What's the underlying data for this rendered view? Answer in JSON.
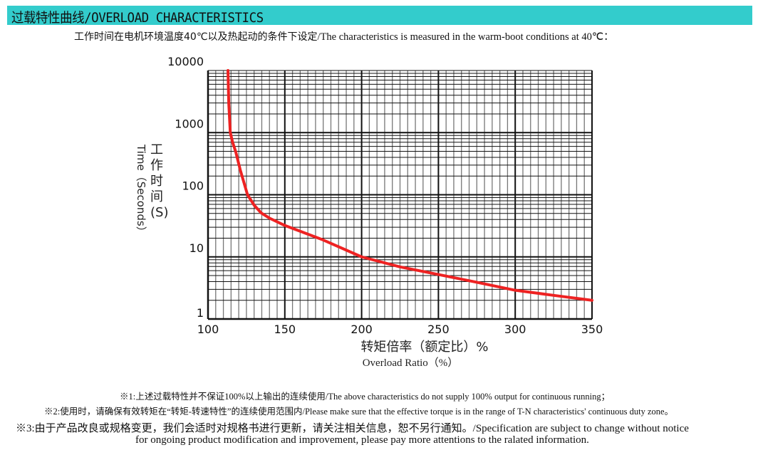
{
  "header": {
    "title": "过载特性曲线/OVERLOAD CHARACTERISTICS",
    "bg_color": "#33CCCC"
  },
  "subtitle": {
    "cn": "工作时间在电机环境温度40℃以及热起动的条件下设定",
    "en": "/The characteristics is measured in the warm-boot conditions at 40℃："
  },
  "chart_data": {
    "type": "line",
    "xlabel_cn": "转矩倍率（额定比）%",
    "xlabel_en": "Overload Ratio（%）",
    "ylabel_cn": "工作时间(S)",
    "ylabel_en": "Time（Seconds）",
    "xlim": [
      100,
      350
    ],
    "ylim": [
      1,
      10000
    ],
    "yscale": "log",
    "grid": true,
    "x_ticks": [
      "100",
      "150",
      "200",
      "250",
      "300",
      "350"
    ],
    "y_ticks": [
      "1",
      "10",
      "100",
      "1000",
      "10000"
    ],
    "series": [
      {
        "color": "#EE2222",
        "x": [
          113,
          113.5,
          114.5,
          116,
          118,
          121,
          125.7,
          130,
          134.6,
          140,
          150,
          175,
          200,
          225,
          250,
          275,
          300,
          325,
          350
        ],
        "y": [
          10000,
          3000,
          1000,
          700,
          495,
          250,
          100,
          68,
          51,
          42,
          32,
          18.7,
          10,
          6.9,
          5.2,
          3.9,
          2.9,
          2.4,
          2.0
        ]
      }
    ]
  },
  "notes": [
    "※1:上述过载特性并不保证100%以上输出的连续使用/The above characteristics do not supply 100% output for continuous running；",
    "※2:使用时，请确保有效转矩在“转矩-转速特性”的连续使用范围内/Please make sure that the effective torque is in the range of T-N characteristics' continuous duty zone。",
    "※3:由于产品改良或规格变更，我们会适时对规格书进行更新，请关注相关信息，恕不另行通知。/Specification are subject to change without notice",
    "for ongoing product modification and improvement, please pay more attentions to the ralated information."
  ]
}
